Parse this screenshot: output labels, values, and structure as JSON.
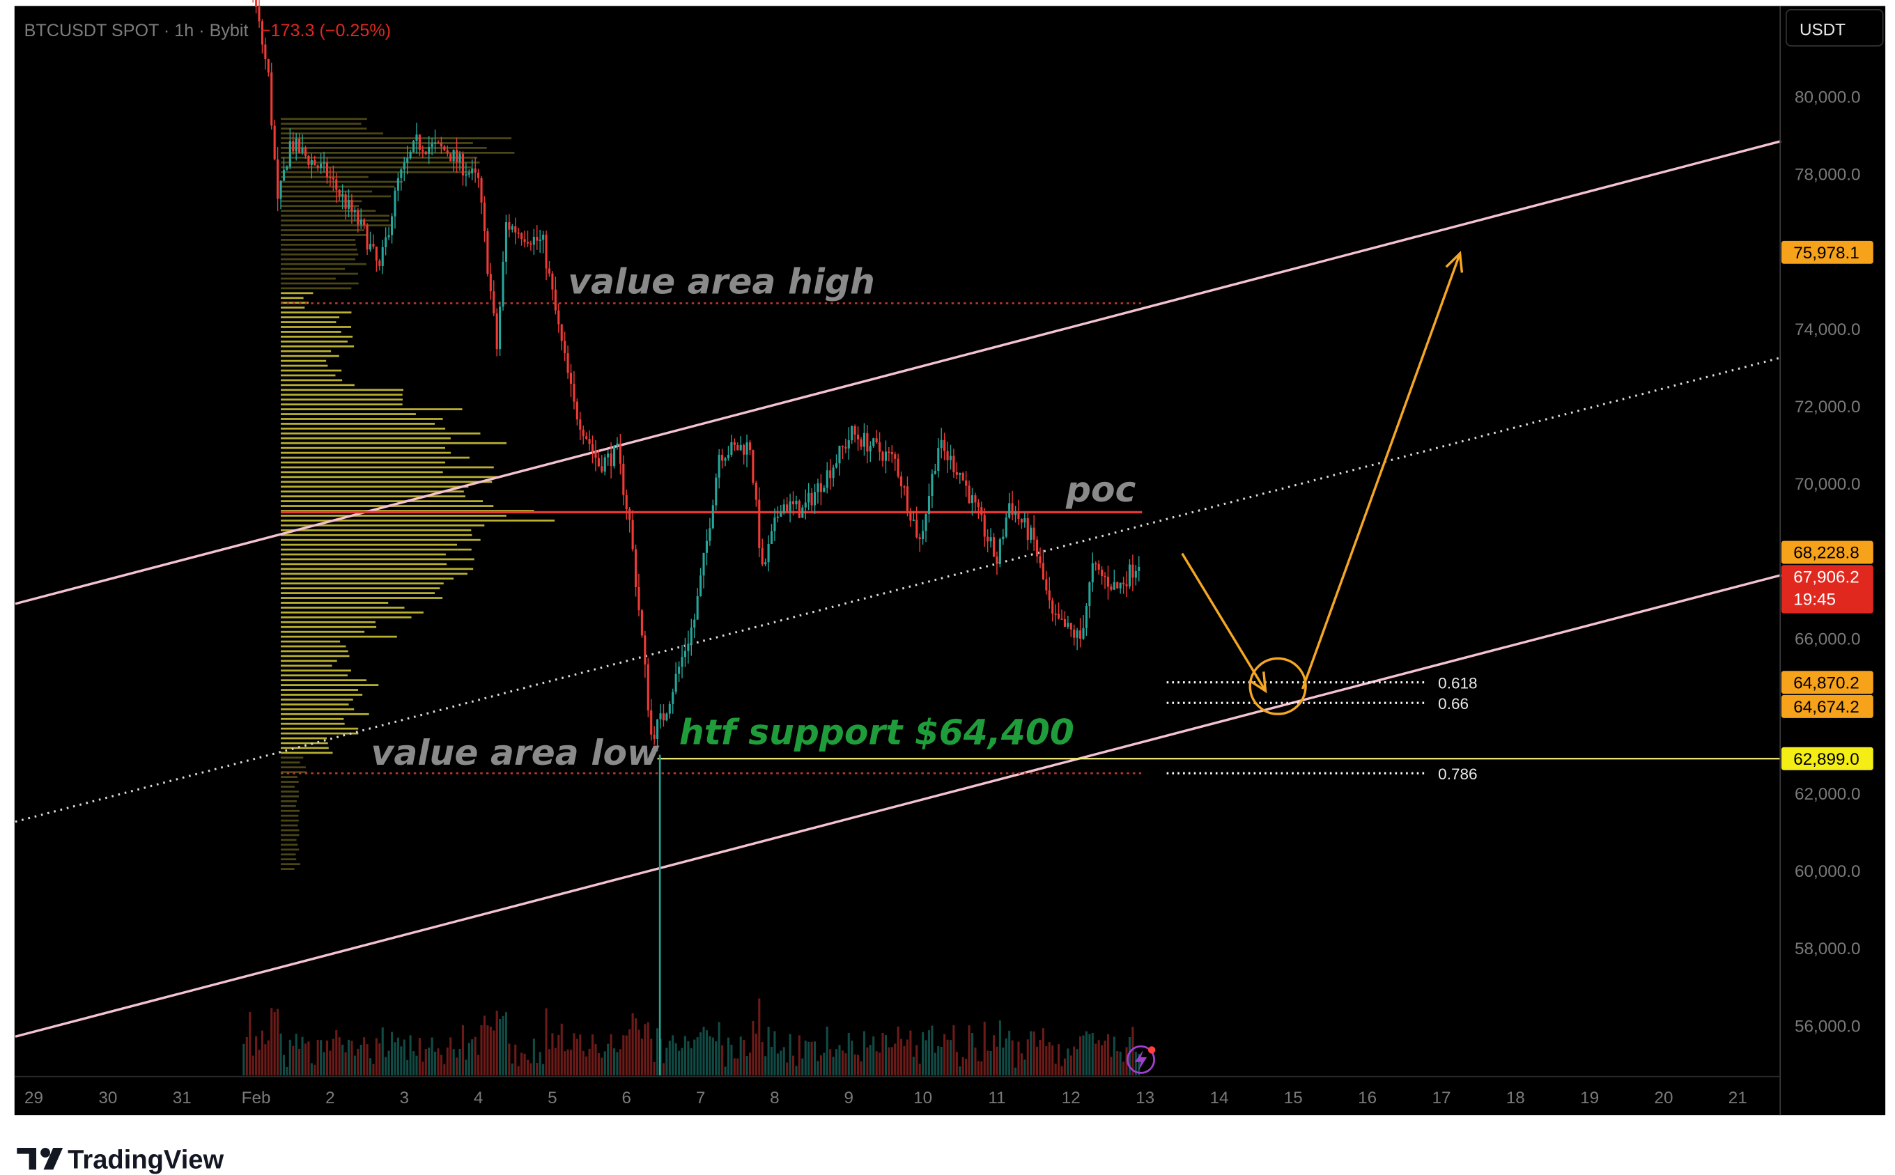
{
  "header": {
    "symbol_info": "BTCUSDT SPOT · 1h · Bybit",
    "change": "−173.3 (−0.25%)",
    "currency_button": "USDT"
  },
  "brand": {
    "name": "TradingView",
    "logo_text": "17"
  },
  "colors": {
    "background": "#000000",
    "up": "#26a69a",
    "down": "#ef3b36",
    "channel": "#f4c2d0",
    "poc": "#e53935",
    "value_area_bar": "#d9cf3a",
    "outside_value_area_bar": "#6b6420",
    "support": "#f5f07a",
    "arrow": "#f5a623",
    "fib": "#ffffff",
    "support_text": "#1f9d3a",
    "annotation_text": "#8a8a8a"
  },
  "annotations": {
    "value_area_high": "value area high",
    "poc": "poc",
    "value_area_low": "value area low",
    "htf_support": "htf support $64,400"
  },
  "chart_data": {
    "type": "candlestick",
    "interval": "1h",
    "x_ticks": [
      "29",
      "30",
      "31",
      "Feb",
      "2",
      "3",
      "4",
      "5",
      "6",
      "7",
      "8",
      "9",
      "10",
      "11",
      "12",
      "13",
      "14",
      "15",
      "16",
      "17",
      "18",
      "19",
      "20",
      "21"
    ],
    "y_ticks": [
      "80,000.0",
      "78,000.0",
      "74,000.0",
      "72,000.0",
      "70,000.0",
      "66,000.0",
      "62,000.0",
      "60,000.0",
      "58,000.0",
      "56,000.0"
    ],
    "y_tick_values": [
      80000,
      78000,
      74000,
      72000,
      70000,
      66000,
      62000,
      60000,
      58000,
      56000
    ],
    "ylim": [
      55000,
      82000
    ],
    "xlim": [
      "01-28 19:00",
      "02-21 14:00"
    ],
    "price_path": [
      {
        "t": "01-31 20:00",
        "p": 84000
      },
      {
        "t": "02-01 04:00",
        "p": 80500
      },
      {
        "t": "02-01 07:00",
        "p": 77200
      },
      {
        "t": "02-01 11:00",
        "p": 78800
      },
      {
        "t": "02-01 23:00",
        "p": 78000
      },
      {
        "t": "02-02 11:00",
        "p": 76500
      },
      {
        "t": "02-02 16:00",
        "p": 75500
      },
      {
        "t": "02-02 22:00",
        "p": 77800
      },
      {
        "t": "02-03 04:00",
        "p": 78800
      },
      {
        "t": "02-03 14:00",
        "p": 78600
      },
      {
        "t": "02-04 00:00",
        "p": 77800
      },
      {
        "t": "02-04 06:00",
        "p": 73500
      },
      {
        "t": "02-04 09:00",
        "p": 76700
      },
      {
        "t": "02-04 21:00",
        "p": 76200
      },
      {
        "t": "02-05 02:00",
        "p": 74000
      },
      {
        "t": "02-05 07:00",
        "p": 72000
      },
      {
        "t": "02-05 15:00",
        "p": 70500
      },
      {
        "t": "02-05 21:00",
        "p": 70800
      },
      {
        "t": "02-06 01:00",
        "p": 69000
      },
      {
        "t": "02-06 05:00",
        "p": 66000
      },
      {
        "t": "02-06 08:00",
        "p": 63500
      },
      {
        "t": "02-06 12:00",
        "p": 64000
      },
      {
        "t": "02-06 16:00",
        "p": 65000
      },
      {
        "t": "02-06 22:00",
        "p": 66500
      },
      {
        "t": "02-07 02:00",
        "p": 68500
      },
      {
        "t": "02-07 06:00",
        "p": 70800
      },
      {
        "t": "02-07 16:00",
        "p": 71000
      },
      {
        "t": "02-07 20:00",
        "p": 67700
      },
      {
        "t": "02-08 02:00",
        "p": 69500
      },
      {
        "t": "02-08 09:00",
        "p": 69300
      },
      {
        "t": "02-08 19:00",
        "p": 70500
      },
      {
        "t": "02-09 01:00",
        "p": 71300
      },
      {
        "t": "02-09 15:00",
        "p": 70600
      },
      {
        "t": "02-09 23:00",
        "p": 68500
      },
      {
        "t": "02-10 05:00",
        "p": 71000
      },
      {
        "t": "02-10 12:00",
        "p": 70300
      },
      {
        "t": "02-11 00:00",
        "p": 68000
      },
      {
        "t": "02-11 04:00",
        "p": 69500
      },
      {
        "t": "02-11 12:00",
        "p": 68500
      },
      {
        "t": "02-11 18:00",
        "p": 66500
      },
      {
        "t": "02-12 03:00",
        "p": 66000
      },
      {
        "t": "02-12 07:00",
        "p": 67800
      },
      {
        "t": "02-12 15:00",
        "p": 67300
      },
      {
        "t": "02-12 22:00",
        "p": 68000
      }
    ],
    "volume_profile": {
      "range": [
        "02-01 08:00",
        "02-12 23:00"
      ],
      "poc": 69265,
      "value_area_high": 74663,
      "value_area_low": 62522,
      "bins": [
        {
          "p": 60000,
          "v": 15
        },
        {
          "p": 60500,
          "v": 15
        },
        {
          "p": 61000,
          "v": 15
        },
        {
          "p": 61500,
          "v": 15
        },
        {
          "p": 62000,
          "v": 15
        },
        {
          "p": 62500,
          "v": 20
        },
        {
          "p": 63000,
          "v": 40
        },
        {
          "p": 63500,
          "v": 60
        },
        {
          "p": 64000,
          "v": 70
        },
        {
          "p": 64500,
          "v": 75
        },
        {
          "p": 65000,
          "v": 55
        },
        {
          "p": 65500,
          "v": 60
        },
        {
          "p": 66000,
          "v": 90
        },
        {
          "p": 66500,
          "v": 110
        },
        {
          "p": 67000,
          "v": 150
        },
        {
          "p": 67500,
          "v": 165
        },
        {
          "p": 68000,
          "v": 150
        },
        {
          "p": 68500,
          "v": 170
        },
        {
          "p": 69000,
          "v": 210
        },
        {
          "p": 69500,
          "v": 175
        },
        {
          "p": 70000,
          "v": 170
        },
        {
          "p": 70500,
          "v": 175
        },
        {
          "p": 71000,
          "v": 170
        },
        {
          "p": 71500,
          "v": 140
        },
        {
          "p": 72000,
          "v": 95
        },
        {
          "p": 72500,
          "v": 60
        },
        {
          "p": 73000,
          "v": 50
        },
        {
          "p": 73500,
          "v": 60
        },
        {
          "p": 74000,
          "v": 55
        },
        {
          "p": 74500,
          "v": 25
        },
        {
          "p": 75000,
          "v": 60
        },
        {
          "p": 75500,
          "v": 65
        },
        {
          "p": 76000,
          "v": 75
        },
        {
          "p": 76500,
          "v": 90
        },
        {
          "p": 77000,
          "v": 85
        },
        {
          "p": 77500,
          "v": 95
        },
        {
          "p": 78000,
          "v": 150
        },
        {
          "p": 78500,
          "v": 190
        },
        {
          "p": 79000,
          "v": 80
        }
      ]
    },
    "channel": {
      "upper": [
        {
          "t": "01-28 18:00",
          "p": 66900
        },
        {
          "t": "02-21 14:00",
          "p": 78850
        }
      ],
      "middle": [
        {
          "t": "01-28 18:00",
          "p": 61270
        },
        {
          "t": "02-21 14:00",
          "p": 73260
        }
      ],
      "lower": [
        {
          "t": "01-28 18:00",
          "p": 55720
        },
        {
          "t": "02-21 14:00",
          "p": 67640
        }
      ]
    },
    "support_line": {
      "start": "02-06 10:00",
      "price": 62899.0
    },
    "fib_levels": [
      {
        "label": "0.618",
        "p": 64870.2
      },
      {
        "label": "0.66",
        "p": 64674.2
      },
      {
        "label": "0.786",
        "p": 62522
      }
    ],
    "fib_range": [
      "02-13 07:00",
      "02-16 19:00"
    ],
    "target_circle": {
      "t": "02-14 19:00",
      "p": 64770
    },
    "arrows": [
      [
        {
          "t": "02-13 12:00",
          "p": 68200
        },
        {
          "t": "02-14 15:00",
          "p": 64650
        }
      ],
      [
        {
          "t": "02-15 03:00",
          "p": 64700
        },
        {
          "t": "02-17 06:00",
          "p": 75950
        }
      ]
    ],
    "price_badges": [
      {
        "label": "75,978.1",
        "p": 75978.1,
        "color": "#f7a21b",
        "text": "#000000"
      },
      {
        "label": "68,228.8",
        "p": 68228.8,
        "color": "#f7a21b",
        "text": "#000000"
      },
      {
        "label": "67,906.2",
        "sub": "19:45",
        "p": 67906.2,
        "color": "#e0281f",
        "text": "#ffffff"
      },
      {
        "label": "64,870.2",
        "p": 64870.2,
        "color": "#f7a21b",
        "text": "#000000"
      },
      {
        "label": "64,674.2",
        "p": 64674.2,
        "color": "#f7a21b",
        "text": "#000000"
      },
      {
        "label": "62,899.0",
        "p": 62899.0,
        "color": "#f5ee14",
        "text": "#000000"
      }
    ]
  }
}
